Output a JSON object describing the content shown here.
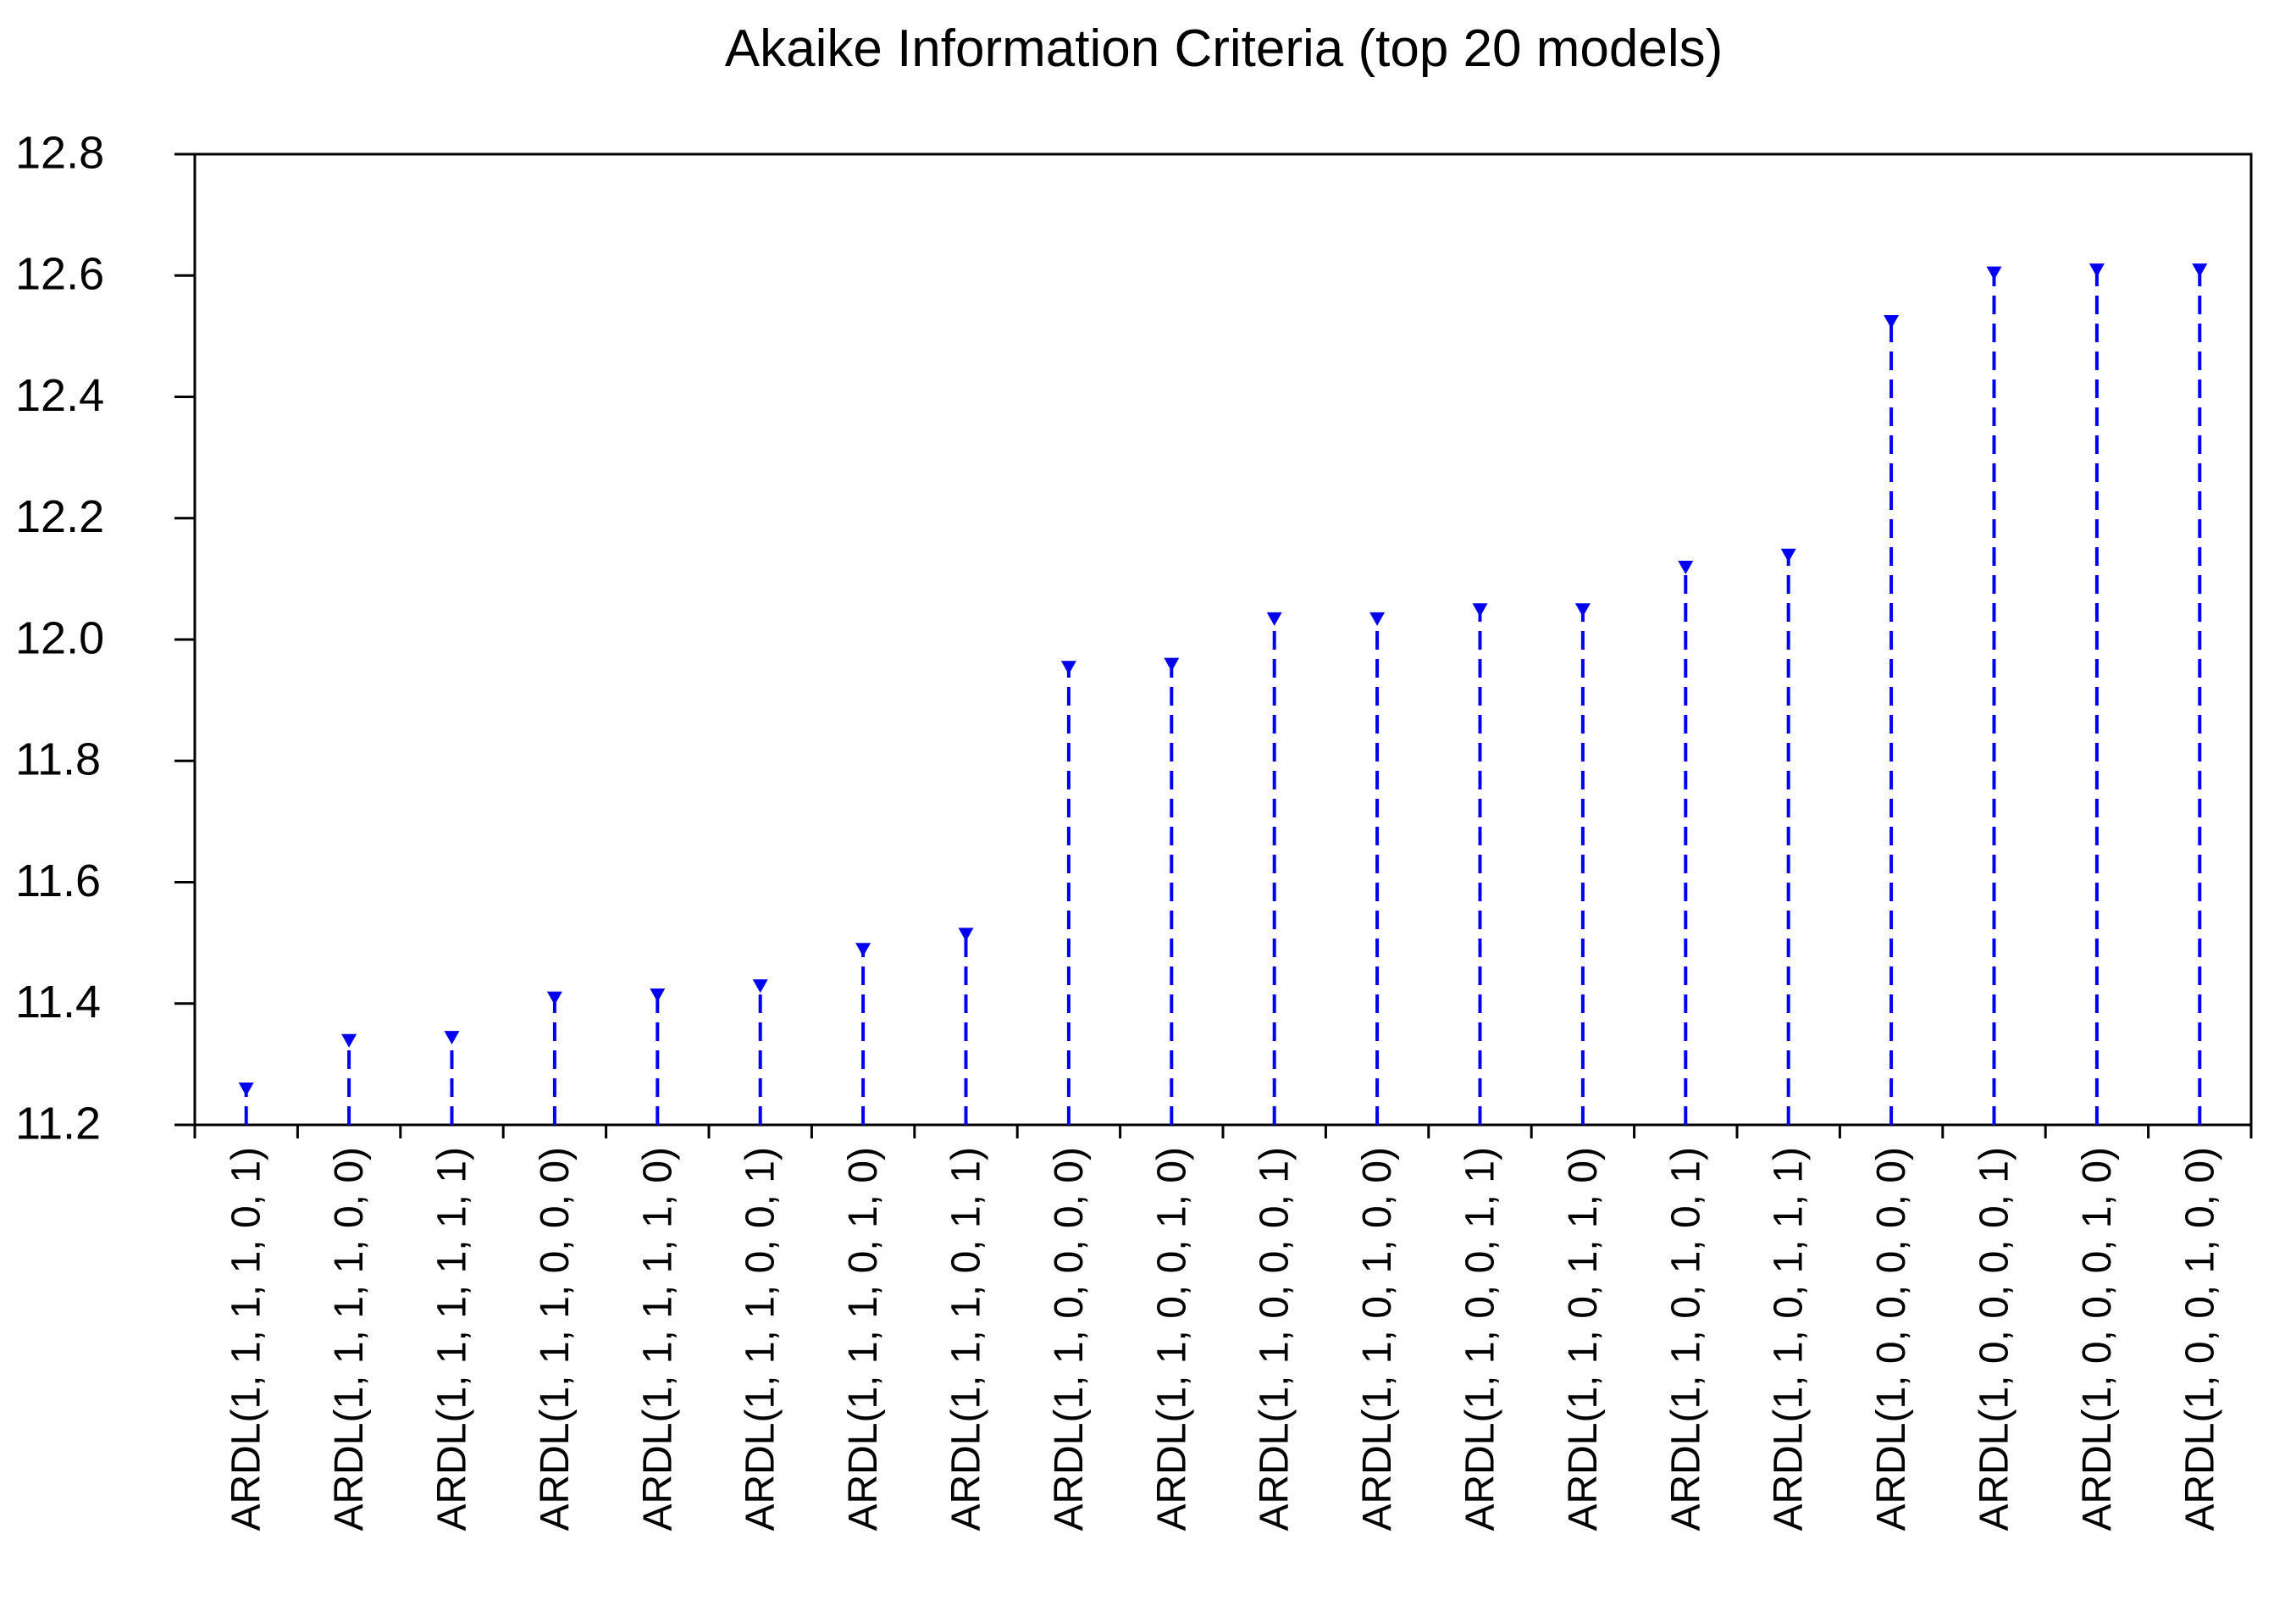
{
  "chart_data": {
    "type": "dropline",
    "title": "Akaike Information Criteria (top 20 models)",
    "xlabel": "",
    "ylabel": "",
    "ylim": [
      11.2,
      12.8
    ],
    "yticks": [
      "11.2",
      "11.4",
      "11.6",
      "11.8",
      "12.0",
      "12.2",
      "12.4",
      "12.6",
      "12.8"
    ],
    "grid": false,
    "legend": "none",
    "marker": "down-triangle",
    "line_style": "dashed",
    "colors": {
      "series": "#0000ee",
      "axis": "#000000",
      "background": "#ffffff"
    },
    "categories": [
      "ARDL(1, 1, 1, 1, 0, 1)",
      "ARDL(1, 1, 1, 1, 0, 0)",
      "ARDL(1, 1, 1, 1, 1, 1)",
      "ARDL(1, 1, 1, 0, 0, 0)",
      "ARDL(1, 1, 1, 1, 1, 0)",
      "ARDL(1, 1, 1, 0, 0, 1)",
      "ARDL(1, 1, 1, 0, 1, 0)",
      "ARDL(1, 1, 1, 0, 1, 1)",
      "ARDL(1, 1, 0, 0, 0, 0)",
      "ARDL(1, 1, 0, 0, 1, 0)",
      "ARDL(1, 1, 0, 0, 0, 1)",
      "ARDL(1, 1, 0, 1, 0, 0)",
      "ARDL(1, 1, 0, 0, 1, 1)",
      "ARDL(1, 1, 0, 1, 1, 0)",
      "ARDL(1, 1, 0, 1, 0, 1)",
      "ARDL(1, 1, 0, 1, 1, 1)",
      "ARDL(1, 0, 0, 0, 0, 0)",
      "ARDL(1, 0, 0, 0, 0, 1)",
      "ARDL(1, 0, 0, 0, 1, 0)",
      "ARDL(1, 0, 0, 1, 0, 0)"
    ],
    "values": [
      11.26,
      11.34,
      11.345,
      11.41,
      11.415,
      11.43,
      11.49,
      11.515,
      11.955,
      11.96,
      12.035,
      12.035,
      12.05,
      12.05,
      12.12,
      12.14,
      12.525,
      12.605,
      12.61,
      12.61
    ]
  }
}
